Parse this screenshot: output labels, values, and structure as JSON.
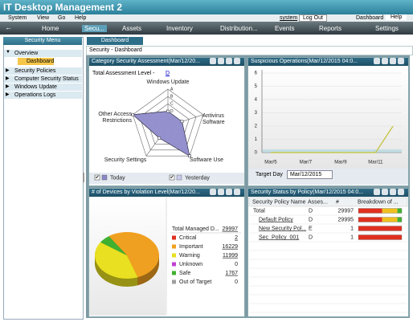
{
  "app": {
    "title": "IT Desktop Management 2",
    "menu": [
      "System",
      "View",
      "Go",
      "Help"
    ],
    "user": "system",
    "logout": "Log Out",
    "links": [
      "Dashboard",
      "Help"
    ],
    "tabs": [
      "Home",
      "Secu...",
      "Assets",
      "Inventory",
      "Distribution...",
      "Events",
      "Reports",
      "Settings"
    ]
  },
  "sidebar": {
    "title": "Security Menu",
    "items": [
      "Overview",
      "Dashboard",
      "Security Policies",
      "Computer Security Status",
      "Windows Update",
      "Operations Logs"
    ]
  },
  "page": {
    "tab": "Dashboard",
    "breadcrumb": "Security - Dashboard"
  },
  "chart_data": [
    {
      "type": "radar",
      "title": "Category Security Assessment(Mar/12/20...",
      "summary_label": "Total Assessment Level  -",
      "summary_value": "D",
      "categories": [
        "Windows Update",
        "Antivirus Software",
        "Software Use",
        "Security Settings",
        "Other Access Restrictions"
      ],
      "rlim": [
        0,
        5
      ],
      "rticks": [
        {
          "value": 1,
          "label": "E"
        },
        {
          "value": 2,
          "label": "D"
        },
        {
          "value": 3,
          "label": "C"
        },
        {
          "value": 4,
          "label": "B"
        },
        {
          "value": 5,
          "label": "A"
        }
      ],
      "series": [
        {
          "name": "Yesterday",
          "color": "#c9c9ec",
          "values": [
            2,
            2,
            5,
            2,
            5
          ]
        },
        {
          "name": "Today",
          "color": "#8a86c8",
          "values": [
            2,
            2,
            5,
            2,
            5
          ]
        }
      ]
    },
    {
      "type": "line",
      "title": "Suspicious Operations(Mar/12/2015 04:0...",
      "categories": [
        "Mar/5",
        null,
        "Mar/7",
        null,
        "Mar/9",
        null,
        "Mar/11",
        null
      ],
      "values": [
        0,
        0,
        0,
        0,
        0,
        0,
        0,
        2
      ],
      "color": "#c8c850",
      "ylim": [
        0,
        6
      ],
      "yticks": [
        0,
        1,
        2,
        3,
        4,
        5,
        6
      ],
      "target_day_label": "Target Day",
      "target_day": "Mar/12/2015"
    },
    {
      "type": "pie",
      "title": "# of Devices by Violation Level(Mar/12/20...",
      "total_label": "Total Managed D...",
      "total": 29997,
      "categories": [
        "Critical",
        "Important",
        "Warning",
        "Unknown",
        "Safe",
        "Out of Target"
      ],
      "values": [
        2,
        16229,
        11999,
        0,
        1767,
        0
      ],
      "colors": [
        "#e03020",
        "#f0a020",
        "#e8e020",
        "#c040d0",
        "#40b030",
        "#a0a0a0"
      ]
    }
  ],
  "policy_panel": {
    "title": "Security Status by Policy(Mar/12/2015 04:0...",
    "columns": [
      "Security Policy Name",
      "Asses...",
      "#",
      "Breakdown of ..."
    ],
    "rows": [
      [
        "Total",
        "D",
        "29997"
      ],
      [
        "Default Policy",
        "D",
        "29995"
      ],
      [
        "New Security Pol...",
        "E",
        "1"
      ],
      [
        "Sec_Policy_001",
        "D",
        "1"
      ]
    ]
  }
}
